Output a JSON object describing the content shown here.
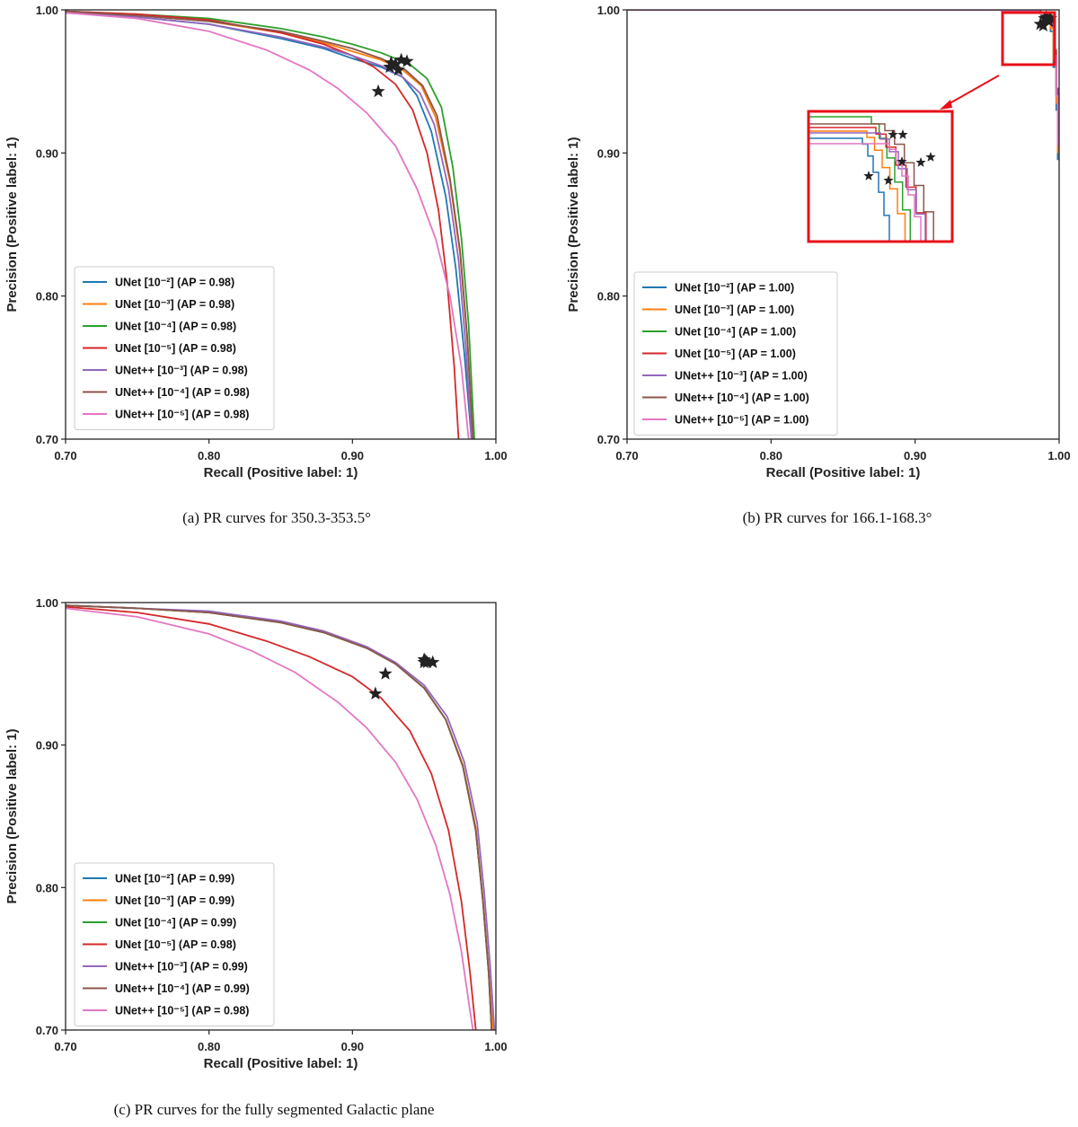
{
  "chart_data": [
    {
      "type": "line",
      "caption": "(a) PR curves for 350.3-353.5°",
      "xlabel": "Recall (Positive label: 1)",
      "ylabel": "Precision (Positive label: 1)",
      "xlim": [
        0.7,
        1.0
      ],
      "ylim": [
        0.7,
        1.0
      ],
      "xticks": [
        "0.70",
        "0.80",
        "0.90",
        "1.00"
      ],
      "yticks": [
        "0.70",
        "0.80",
        "0.90",
        "1.00"
      ],
      "legend_loc": "lower-left",
      "series": [
        {
          "name": "UNet [10⁻²] (AP = 0.98)",
          "color": "#1f77b4",
          "x": [
            0.7,
            0.75,
            0.8,
            0.85,
            0.88,
            0.9,
            0.92,
            0.935,
            0.945,
            0.955,
            0.965,
            0.972,
            0.978,
            0.983
          ],
          "y": [
            0.998,
            0.995,
            0.99,
            0.98,
            0.973,
            0.966,
            0.96,
            0.953,
            0.94,
            0.915,
            0.87,
            0.82,
            0.76,
            0.7
          ],
          "marker": [
            0.927,
            0.963
          ]
        },
        {
          "name": "UNet [10⁻³] (AP = 0.98)",
          "color": "#ff7f0e",
          "x": [
            0.7,
            0.75,
            0.8,
            0.85,
            0.88,
            0.9,
            0.92,
            0.935,
            0.948,
            0.958,
            0.968,
            0.975,
            0.98,
            0.984
          ],
          "y": [
            0.999,
            0.996,
            0.992,
            0.984,
            0.977,
            0.971,
            0.965,
            0.958,
            0.947,
            0.925,
            0.88,
            0.83,
            0.77,
            0.7
          ],
          "marker": [
            0.93,
            0.962
          ]
        },
        {
          "name": "UNet [10⁻⁴] (AP = 0.98)",
          "color": "#2ca02c",
          "x": [
            0.7,
            0.75,
            0.8,
            0.85,
            0.88,
            0.9,
            0.92,
            0.94,
            0.952,
            0.962,
            0.97,
            0.976,
            0.981,
            0.985
          ],
          "y": [
            0.999,
            0.997,
            0.994,
            0.987,
            0.981,
            0.976,
            0.97,
            0.962,
            0.952,
            0.932,
            0.89,
            0.84,
            0.78,
            0.7
          ],
          "marker": [
            0.934,
            0.965
          ]
        },
        {
          "name": "UNet [10⁻⁵] (AP = 0.98)",
          "color": "#d62728",
          "x": [
            0.7,
            0.75,
            0.8,
            0.85,
            0.88,
            0.9,
            0.915,
            0.93,
            0.942,
            0.952,
            0.96,
            0.966,
            0.971,
            0.974
          ],
          "y": [
            0.999,
            0.997,
            0.993,
            0.984,
            0.976,
            0.968,
            0.96,
            0.948,
            0.93,
            0.9,
            0.86,
            0.81,
            0.75,
            0.7
          ],
          "marker": [
            0.926,
            0.96
          ]
        },
        {
          "name": "UNet++ [10⁻³] (AP = 0.98)",
          "color": "#9467bd",
          "x": [
            0.7,
            0.75,
            0.8,
            0.85,
            0.88,
            0.9,
            0.92,
            0.935,
            0.947,
            0.957,
            0.967,
            0.974,
            0.979,
            0.983
          ],
          "y": [
            0.998,
            0.995,
            0.99,
            0.981,
            0.974,
            0.968,
            0.961,
            0.953,
            0.942,
            0.92,
            0.875,
            0.825,
            0.765,
            0.7
          ],
          "marker": [
            0.932,
            0.958
          ]
        },
        {
          "name": "UNet++ [10⁻⁴] (AP = 0.98)",
          "color": "#8c564b",
          "x": [
            0.7,
            0.75,
            0.8,
            0.85,
            0.88,
            0.9,
            0.92,
            0.937,
            0.949,
            0.959,
            0.968,
            0.975,
            0.98,
            0.984
          ],
          "y": [
            0.999,
            0.996,
            0.992,
            0.985,
            0.978,
            0.973,
            0.966,
            0.958,
            0.947,
            0.926,
            0.882,
            0.832,
            0.772,
            0.7
          ],
          "marker": [
            0.938,
            0.964
          ]
        },
        {
          "name": "UNet++ [10⁻⁵] (AP = 0.98)",
          "color": "#e377c2",
          "x": [
            0.7,
            0.75,
            0.8,
            0.84,
            0.87,
            0.89,
            0.91,
            0.93,
            0.945,
            0.958,
            0.968,
            0.976,
            0.981
          ],
          "y": [
            0.998,
            0.994,
            0.985,
            0.972,
            0.958,
            0.945,
            0.928,
            0.905,
            0.875,
            0.84,
            0.8,
            0.75,
            0.7
          ],
          "marker": [
            0.918,
            0.943
          ]
        }
      ]
    },
    {
      "type": "line",
      "caption": "(b) PR curves for 166.1-168.3°",
      "xlabel": "Recall (Positive label: 1)",
      "ylabel": "Precision (Positive label: 1)",
      "xlim": [
        0.7,
        1.0
      ],
      "ylim": [
        0.7,
        1.0
      ],
      "xticks": [
        "0.70",
        "0.80",
        "0.90",
        "1.00"
      ],
      "yticks": [
        "0.70",
        "0.80",
        "0.90",
        "1.00"
      ],
      "legend_loc": "lower-left",
      "inset": "zoomed view of top-right corner",
      "series": [
        {
          "name": "UNet [10⁻²] (AP = 1.00)",
          "color": "#1f77b4",
          "x": [
            0.7,
            0.9,
            0.96,
            0.985,
            0.991,
            0.994,
            0.996,
            0.998,
            0.999
          ],
          "y": [
            1.0,
            1.0,
            0.9995,
            0.998,
            0.994,
            0.985,
            0.96,
            0.93,
            0.895
          ],
          "marker": [
            0.987,
            0.99
          ]
        },
        {
          "name": "UNet [10⁻³] (AP = 1.00)",
          "color": "#ff7f0e",
          "x": [
            0.7,
            0.9,
            0.96,
            0.985,
            0.991,
            0.994,
            0.996,
            0.998,
            0.999
          ],
          "y": [
            1.0,
            1.0,
            0.9995,
            0.998,
            0.995,
            0.987,
            0.965,
            0.935,
            0.9
          ],
          "marker": [
            0.989,
            0.989
          ]
        },
        {
          "name": "UNet [10⁻⁴] (AP = 1.00)",
          "color": "#2ca02c",
          "x": [
            0.7,
            0.9,
            0.96,
            0.986,
            0.992,
            0.995,
            0.997,
            0.998,
            0.999
          ],
          "y": [
            1.0,
            1.0,
            0.9996,
            0.998,
            0.995,
            0.988,
            0.967,
            0.94,
            0.905
          ],
          "marker": [
            0.99,
            0.994
          ]
        },
        {
          "name": "UNet [10⁻⁵] (AP = 1.00)",
          "color": "#d62728",
          "x": [
            0.7,
            0.9,
            0.96,
            0.987,
            0.992,
            0.995,
            0.997,
            0.998,
            0.999
          ],
          "y": [
            1.0,
            1.0,
            0.9996,
            0.998,
            0.996,
            0.989,
            0.968,
            0.94,
            0.905
          ],
          "marker": [
            0.991,
            0.995
          ]
        },
        {
          "name": "UNet++ [10⁻³] (AP = 1.00)",
          "color": "#9467bd",
          "x": [
            0.7,
            0.9,
            0.96,
            0.987,
            0.993,
            0.996,
            0.997,
            0.998,
            0.999
          ],
          "y": [
            1.0,
            1.0,
            0.9996,
            0.998,
            0.996,
            0.99,
            0.97,
            0.945,
            0.91
          ],
          "marker": [
            0.992,
            0.993
          ]
        },
        {
          "name": "UNet++ [10⁻⁴] (AP = 1.00)",
          "color": "#8c564b",
          "x": [
            0.7,
            0.9,
            0.96,
            0.987,
            0.993,
            0.996,
            0.997,
            0.998,
            0.999
          ],
          "y": [
            1.0,
            1.0,
            0.9996,
            0.998,
            0.996,
            0.99,
            0.972,
            0.945,
            0.91
          ],
          "marker": [
            0.994,
            0.994
          ]
        },
        {
          "name": "UNet++ [10⁻⁵] (AP = 1.00)",
          "color": "#e377c2",
          "x": [
            0.7,
            0.9,
            0.96,
            0.986,
            0.992,
            0.995,
            0.997,
            0.998,
            0.999
          ],
          "y": [
            1.0,
            1.0,
            0.9996,
            0.998,
            0.995,
            0.988,
            0.968,
            0.94,
            0.905
          ],
          "marker": [
            0.993,
            0.992
          ]
        }
      ]
    },
    {
      "type": "line",
      "caption": "(c) PR curves for the fully segmented Galactic plane",
      "xlabel": "Recall (Positive label: 1)",
      "ylabel": "Precision (Positive label: 1)",
      "xlim": [
        0.7,
        1.0
      ],
      "ylim": [
        0.7,
        1.0
      ],
      "xticks": [
        "0.70",
        "0.80",
        "0.90",
        "1.00"
      ],
      "yticks": [
        "0.70",
        "0.80",
        "0.90",
        "1.00"
      ],
      "legend_loc": "lower-left",
      "series": [
        {
          "name": "UNet [10⁻²] (AP = 0.99)",
          "color": "#1f77b4",
          "x": [
            0.7,
            0.75,
            0.8,
            0.85,
            0.88,
            0.91,
            0.93,
            0.95,
            0.965,
            0.977,
            0.986,
            0.991,
            0.995,
            0.997
          ],
          "y": [
            0.998,
            0.996,
            0.993,
            0.986,
            0.979,
            0.968,
            0.957,
            0.94,
            0.918,
            0.885,
            0.84,
            0.79,
            0.74,
            0.7
          ],
          "marker": [
            0.95,
            0.958
          ]
        },
        {
          "name": "UNet [10⁻³] (AP = 0.99)",
          "color": "#ff7f0e",
          "x": [
            0.7,
            0.75,
            0.8,
            0.85,
            0.88,
            0.91,
            0.93,
            0.95,
            0.965,
            0.977,
            0.986,
            0.991,
            0.995,
            0.998
          ],
          "y": [
            0.998,
            0.996,
            0.993,
            0.986,
            0.979,
            0.968,
            0.957,
            0.94,
            0.918,
            0.886,
            0.842,
            0.792,
            0.742,
            0.7
          ],
          "marker": [
            0.952,
            0.958
          ]
        },
        {
          "name": "UNet [10⁻⁴] (AP = 0.99)",
          "color": "#2ca02c",
          "x": [
            0.7,
            0.75,
            0.8,
            0.85,
            0.88,
            0.91,
            0.93,
            0.95,
            0.965,
            0.977,
            0.986,
            0.991,
            0.995,
            0.997
          ],
          "y": [
            0.998,
            0.996,
            0.993,
            0.986,
            0.979,
            0.968,
            0.957,
            0.94,
            0.918,
            0.885,
            0.84,
            0.79,
            0.74,
            0.7
          ],
          "marker": [
            0.951,
            0.959
          ]
        },
        {
          "name": "UNet [10⁻⁵] (AP = 0.98)",
          "color": "#d62728",
          "x": [
            0.7,
            0.75,
            0.8,
            0.84,
            0.87,
            0.9,
            0.92,
            0.94,
            0.955,
            0.967,
            0.976,
            0.982,
            0.986
          ],
          "y": [
            0.997,
            0.993,
            0.985,
            0.973,
            0.962,
            0.948,
            0.933,
            0.91,
            0.88,
            0.84,
            0.79,
            0.74,
            0.7
          ],
          "marker": [
            0.923,
            0.95
          ]
        },
        {
          "name": "UNet++ [10⁻³] (AP = 0.99)",
          "color": "#9467bd",
          "x": [
            0.7,
            0.75,
            0.8,
            0.85,
            0.88,
            0.91,
            0.93,
            0.95,
            0.966,
            0.978,
            0.987,
            0.992,
            0.996,
            0.999
          ],
          "y": [
            0.998,
            0.996,
            0.994,
            0.987,
            0.98,
            0.969,
            0.958,
            0.942,
            0.92,
            0.888,
            0.845,
            0.795,
            0.745,
            0.7
          ],
          "marker": [
            0.956,
            0.958
          ]
        },
        {
          "name": "UNet++ [10⁻⁴] (AP = 0.99)",
          "color": "#8c564b",
          "x": [
            0.7,
            0.75,
            0.8,
            0.85,
            0.88,
            0.91,
            0.93,
            0.95,
            0.965,
            0.977,
            0.986,
            0.991,
            0.995,
            0.997
          ],
          "y": [
            0.998,
            0.996,
            0.993,
            0.986,
            0.979,
            0.968,
            0.957,
            0.94,
            0.918,
            0.885,
            0.84,
            0.79,
            0.74,
            0.7
          ],
          "marker": [
            0.95,
            0.96
          ]
        },
        {
          "name": "UNet++ [10⁻⁵] (AP = 0.98)",
          "color": "#e377c2",
          "x": [
            0.7,
            0.75,
            0.8,
            0.83,
            0.86,
            0.89,
            0.91,
            0.93,
            0.945,
            0.958,
            0.968,
            0.976,
            0.981,
            0.984
          ],
          "y": [
            0.996,
            0.99,
            0.978,
            0.966,
            0.951,
            0.93,
            0.912,
            0.888,
            0.862,
            0.83,
            0.795,
            0.755,
            0.72,
            0.7
          ],
          "marker": [
            0.916,
            0.936
          ]
        }
      ]
    }
  ]
}
